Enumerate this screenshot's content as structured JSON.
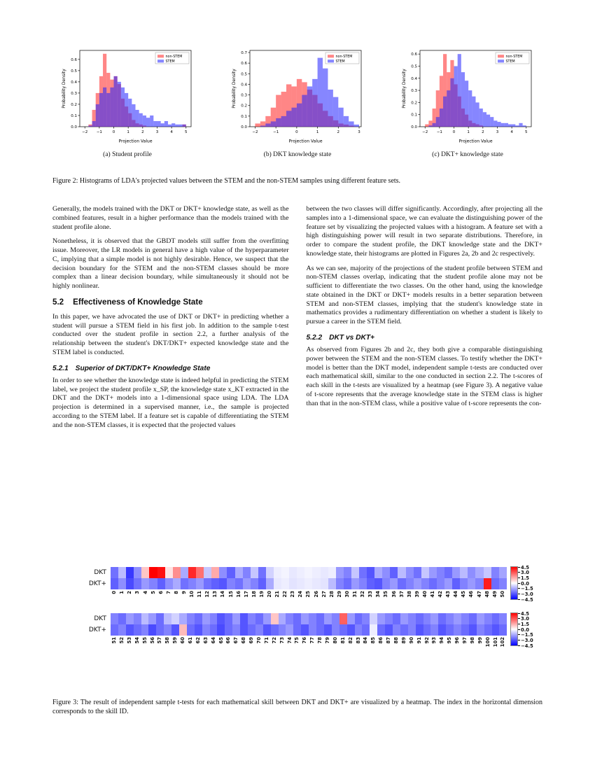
{
  "figure2": {
    "subcaptions": [
      "(a) Student profile",
      "(b) DKT knowledge state",
      "(c) DKT+ knowledge state"
    ],
    "caption": "Figure 2: Histograms of LDA's projected values between the STEM and the non-STEM samples using different feature sets."
  },
  "figure3": {
    "caption": "Figure 3: The result of independent sample t-tests for each mathematical skill between DKT and DKT+ are visualized by a heatmap. The index in the horizontal dimension corresponds to the skill ID."
  },
  "sections": {
    "s52": {
      "number": "5.2",
      "title": "Effectiveness of Knowledge State"
    },
    "s521": {
      "number": "5.2.1",
      "title": "Superior of DKT/DKT+ Knowledge State"
    },
    "s522": {
      "number": "5.2.2",
      "title": "DKT vs DKT+"
    }
  },
  "text": {
    "p1": "Generally, the models trained with the DKT or DKT+ knowledge state, as well as the combined features, result in a higher performance than the models trained with the student profile alone.",
    "p2": "Nonetheless, it is observed that the GBDT models still suffer from the overfitting issue. Moreover, the LR models in general have a high value of the hyperparameter C, implying that a simple model is not highly desirable. Hence, we suspect that the decision boundary for the STEM and the non-STEM classes should be more complex than a linear decision boundary, while simultaneously it should not be highly nonlinear.",
    "p3": "In this paper, we have advocated the use of DKT or DKT+ in predicting whether a student will pursue a STEM field in his first job. In addition to the sample t-test conducted over the student profile in section 2.2, a further analysis of the relationship between the student's DKT/DKT+ expected knowledge state and the STEM label is conducted.",
    "p4": "In order to see whether the knowledge state is indeed helpful in predicting the STEM label, we project the student profile x_SP, the knowledge state x_KT extracted in the DKT and the DKT+ models into a 1-dimensional space using LDA. The LDA projection is determined in a supervised manner, i.e., the sample is projected according to the STEM label. If a feature set is capable of differentiating the STEM and the non-STEM classes, it is expected that the projected values",
    "p5": "between the two classes will differ significantly. Accordingly, after projecting all the samples into a 1-dimensional space, we can evaluate the distinguishing power of the feature set by visualizing the projected values with a histogram. A feature set with a high distinguishing power will result in two separate distributions. Therefore, in order to compare the student profile, the DKT knowledge state and the DKT+ knowledge state, their histograms are plotted in Figures 2a, 2b and 2c respectively.",
    "p6": "As we can see, majority of the projections of the student profile between STEM and non-STEM classes overlap, indicating that the student profile alone may not be sufficient to differentiate the two classes. On the other hand, using the knowledge state obtained in the DKT or DKT+ models results in a better separation between STEM and non-STEM classes, implying that the student's knowledge state in mathematics provides a rudimentary differentiation on whether a student is likely to pursue a career in the STEM field.",
    "p7": "As observed from Figures 2b and 2c, they both give a comparable distinguishing power between the STEM and the non-STEM classes. To testify whether the DKT+ model is better than the DKT model, independent sample t-tests are conducted over each mathematical skill, similar to the one conducted in section 2.2. The t-scores of each skill in the t-tests are visualized by a heatmap (see Figure 3). A negative value of t-score represents that the average knowledge state in the STEM class is higher than that in the non-STEM class, while a positive value of t-score represents the con-"
  },
  "chart_data": [
    {
      "type": "histogram",
      "id": "hist-student-profile",
      "xlabel": "Projection Value",
      "ylabel": "Probability Density",
      "xlim": [
        -2.35,
        5.35
      ],
      "ylim": [
        0,
        0.68
      ],
      "xticks": [
        -2,
        -1,
        0,
        1,
        2,
        3,
        4,
        5
      ],
      "yticks": [
        0,
        0.1,
        0.2,
        0.3,
        0.4,
        0.5,
        0.6
      ],
      "bin_start": -2,
      "bin_width": 0.25,
      "legend_position": "top-right",
      "series": [
        {
          "name": "non-STEM",
          "color": "#ff2222",
          "values": [
            0,
            0.02,
            0.15,
            0.3,
            0.45,
            0.65,
            0.48,
            0.42,
            0.45,
            0.38,
            0.25,
            0.18,
            0.12,
            0.06,
            0.03,
            0.02,
            0.01,
            0,
            0,
            0,
            0,
            0,
            0,
            0,
            0,
            0,
            0,
            0.02
          ]
        },
        {
          "name": "STEM",
          "color": "#2222ff",
          "values": [
            0,
            0.01,
            0.05,
            0.2,
            0.3,
            0.35,
            0.3,
            0.35,
            0.45,
            0.4,
            0.35,
            0.3,
            0.25,
            0.2,
            0.15,
            0.12,
            0.1,
            0.08,
            0.1,
            0.05,
            0.05,
            0.03,
            0.05,
            0.02,
            0.03,
            0.02,
            0.02,
            0.02
          ]
        }
      ]
    },
    {
      "type": "histogram",
      "id": "hist-dkt-knowledge-state",
      "xlabel": "Projection Value",
      "ylabel": "Probability Density",
      "xlim": [
        -2.25,
        3.1
      ],
      "ylim": [
        0,
        0.72
      ],
      "xticks": [
        -2,
        -1,
        0,
        1,
        2,
        3
      ],
      "yticks": [
        0,
        0.1,
        0.2,
        0.3,
        0.4,
        0.5,
        0.6,
        0.7
      ],
      "bin_start": -2,
      "bin_width": 0.25,
      "legend_position": "top-right",
      "series": [
        {
          "name": "non-STEM",
          "color": "#ff2222",
          "values": [
            0.03,
            0.05,
            0.1,
            0.18,
            0.3,
            0.33,
            0.4,
            0.38,
            0.45,
            0.42,
            0.35,
            0.3,
            0.22,
            0.15,
            0.1,
            0.06,
            0.03,
            0.02,
            0.01,
            0
          ]
        },
        {
          "name": "STEM",
          "color": "#2222ff",
          "values": [
            0,
            0.01,
            0.03,
            0.05,
            0.08,
            0.1,
            0.15,
            0.18,
            0.22,
            0.3,
            0.38,
            0.45,
            0.65,
            0.55,
            0.35,
            0.28,
            0.18,
            0.1,
            0.05,
            0.02
          ]
        }
      ]
    },
    {
      "type": "histogram",
      "id": "hist-dktplus-knowledge-state",
      "xlabel": "Projection Value",
      "ylabel": "Probability Density",
      "xlim": [
        -2.35,
        5.35
      ],
      "ylim": [
        0,
        0.63
      ],
      "xticks": [
        -2,
        -1,
        0,
        1,
        2,
        3,
        4,
        5
      ],
      "yticks": [
        0,
        0.1,
        0.2,
        0.3,
        0.4,
        0.5,
        0.6
      ],
      "bin_start": -2,
      "bin_width": 0.25,
      "legend_position": "top-right",
      "series": [
        {
          "name": "non-STEM",
          "color": "#ff2222",
          "values": [
            0.02,
            0.05,
            0.15,
            0.3,
            0.42,
            0.6,
            0.45,
            0.55,
            0.35,
            0.25,
            0.15,
            0.1,
            0.05,
            0.03,
            0.02,
            0.01,
            0,
            0,
            0,
            0,
            0,
            0,
            0,
            0,
            0,
            0,
            0,
            0
          ]
        },
        {
          "name": "STEM",
          "color": "#2222ff",
          "values": [
            0,
            0.01,
            0.03,
            0.08,
            0.15,
            0.25,
            0.3,
            0.4,
            0.5,
            0.6,
            0.45,
            0.38,
            0.3,
            0.25,
            0.2,
            0.15,
            0.12,
            0.1,
            0.08,
            0.05,
            0.04,
            0.03,
            0.03,
            0.02,
            0.02,
            0.01,
            0.03,
            0.01
          ]
        }
      ]
    },
    {
      "type": "heatmap",
      "id": "ttest-skills-0-50",
      "rows": [
        "DKT",
        "DKT+"
      ],
      "columns": [
        0,
        1,
        2,
        3,
        4,
        5,
        6,
        7,
        8,
        9,
        10,
        11,
        12,
        13,
        14,
        15,
        16,
        17,
        18,
        19,
        20,
        21,
        22,
        23,
        24,
        25,
        26,
        27,
        28,
        29,
        30,
        31,
        32,
        33,
        34,
        35,
        36,
        37,
        38,
        39,
        40,
        41,
        42,
        43,
        44,
        45,
        46,
        47,
        48,
        49,
        50
      ],
      "vmin": -4.5,
      "vmax": 4.5,
      "colorbar_ticks": [
        4.5,
        3.0,
        1.5,
        0.0,
        -1.5,
        -3.0,
        -4.5
      ],
      "values": [
        [
          -2.5,
          -1.2,
          -3.5,
          -2.0,
          1.0,
          4.5,
          4.2,
          0.5,
          2.0,
          -1.5,
          3.8,
          2.5,
          -1.0,
          1.5,
          -2.0,
          -2.8,
          -1.5,
          -2.2,
          -1.0,
          -2.5,
          -0.8,
          -0.3,
          -0.2,
          -0.4,
          -0.3,
          -0.2,
          -0.3,
          -0.4,
          -0.3,
          -1.8,
          -2.2,
          -1.0,
          -2.5,
          -3.0,
          -1.5,
          -2.0,
          -2.8,
          -1.2,
          -2.0,
          -2.5,
          -1.0,
          -1.8,
          -2.2,
          -2.6,
          -1.8,
          -1.2,
          -2.0,
          -1.5,
          -1.0,
          -2.2,
          -1.6
        ],
        [
          -2.8,
          -2.0,
          -3.2,
          -2.5,
          -1.8,
          -2.2,
          -2.8,
          -2.0,
          -1.5,
          -2.5,
          -2.2,
          -1.8,
          -2.5,
          -2.8,
          -3.0,
          -2.2,
          -2.5,
          -1.8,
          -2.2,
          -2.8,
          -1.5,
          -0.4,
          -0.3,
          -0.5,
          -0.4,
          -0.3,
          -0.4,
          -0.5,
          -1.2,
          -2.2,
          -2.6,
          -1.8,
          -2.2,
          -2.8,
          -3.0,
          -2.2,
          -1.8,
          -2.6,
          -2.2,
          -1.8,
          -2.2,
          -2.6,
          -2.2,
          -1.8,
          -2.8,
          -2.2,
          -1.8,
          -2.2,
          4.0,
          -2.6,
          -2.2
        ]
      ]
    },
    {
      "type": "heatmap",
      "id": "ttest-skills-51-102",
      "rows": [
        "DKT",
        "DKT+"
      ],
      "columns": [
        51,
        52,
        53,
        54,
        55,
        56,
        57,
        58,
        59,
        60,
        61,
        62,
        63,
        64,
        65,
        66,
        67,
        68,
        69,
        70,
        71,
        72,
        73,
        74,
        75,
        76,
        77,
        78,
        79,
        80,
        81,
        82,
        83,
        84,
        85,
        86,
        87,
        88,
        89,
        90,
        91,
        92,
        93,
        94,
        95,
        96,
        97,
        98,
        99,
        100,
        101,
        102
      ],
      "vmin": -4.5,
      "vmax": 4.5,
      "colorbar_ticks": [
        4.5,
        3.0,
        1.5,
        0.0,
        -1.5,
        -3.0,
        -4.5
      ],
      "values": [
        [
          -2.2,
          -2.6,
          -1.8,
          -2.2,
          -1.2,
          -1.8,
          -2.6,
          -1.2,
          -0.8,
          -1.5,
          -2.2,
          -2.6,
          -1.8,
          -2.2,
          -3.0,
          -2.6,
          -1.8,
          -3.0,
          -2.2,
          -2.6,
          -1.8,
          1.0,
          -1.5,
          -2.2,
          -2.6,
          -1.8,
          -2.2,
          -2.6,
          -1.8,
          -2.2,
          2.8,
          -1.8,
          -2.6,
          -2.2,
          -0.8,
          -1.8,
          -2.2,
          -2.6,
          -1.8,
          -2.2,
          -2.6,
          -2.2,
          -1.8,
          -2.6,
          -2.2,
          -1.8,
          -2.2,
          -2.6,
          -1.8,
          -2.2,
          -2.6,
          -2.2
        ],
        [
          -2.6,
          -2.2,
          -3.0,
          -2.6,
          -2.2,
          -3.2,
          -2.6,
          -2.2,
          -3.0,
          1.2,
          -2.6,
          -3.0,
          -2.2,
          -2.6,
          -3.2,
          -2.6,
          -2.2,
          -3.0,
          -2.6,
          -2.2,
          -3.0,
          -2.6,
          -2.2,
          -1.8,
          -2.6,
          -3.0,
          -2.2,
          -2.6,
          -3.0,
          -2.2,
          -2.6,
          -3.0,
          -2.2,
          -2.6,
          -0.3,
          -2.6,
          -3.0,
          -2.2,
          -2.6,
          -2.2,
          -3.0,
          -2.6,
          -2.2,
          -3.0,
          -2.6,
          -2.2,
          -2.6,
          -3.0,
          -2.2,
          -2.6,
          -3.0,
          -2.6
        ]
      ]
    }
  ]
}
